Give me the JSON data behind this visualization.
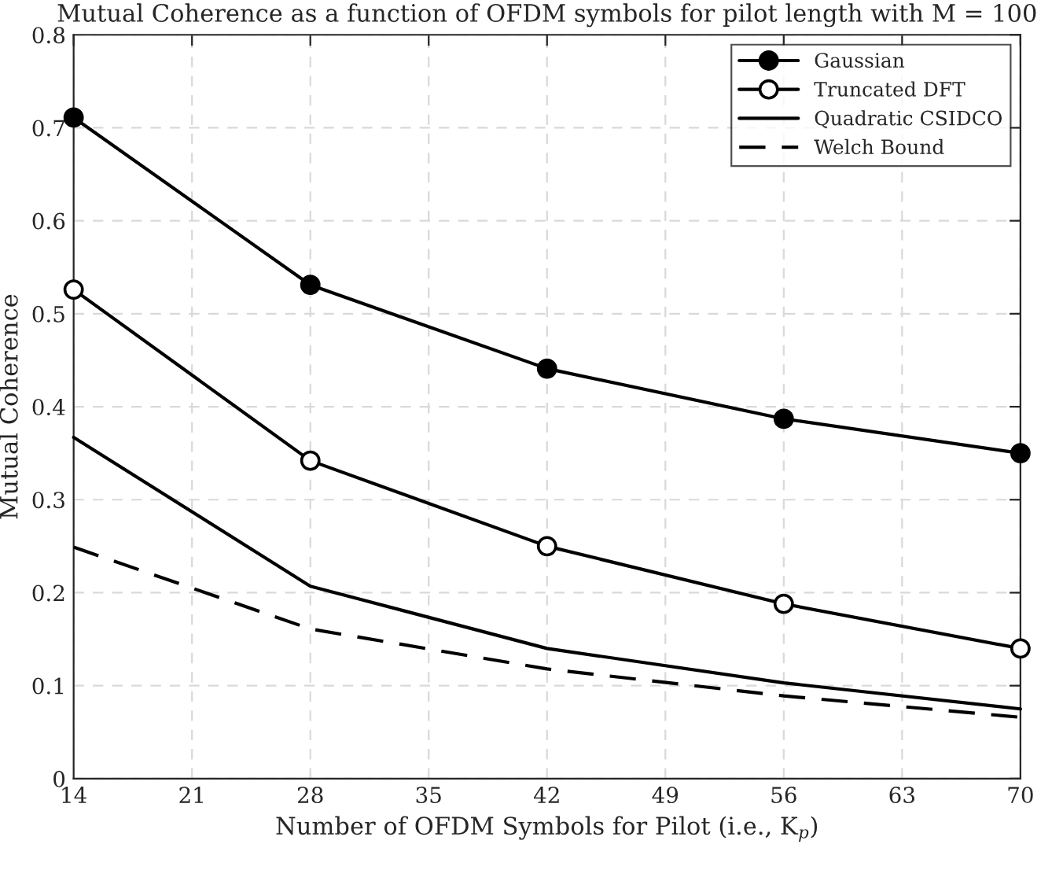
{
  "chart_data": {
    "type": "line",
    "title": "Mutual Coherence as a function of OFDM symbols for pilot length with M = 100",
    "xlabel": "Number of OFDM Symbols for Pilot (i.e., K$_{p}$)",
    "ylabel": "Mutual Coherence",
    "x": [
      14,
      28,
      42,
      56,
      70
    ],
    "series": [
      {
        "name": "Gaussian",
        "color": "#000000",
        "marker": "circle",
        "line_style": "solid",
        "values": [
          0.711,
          0.531,
          0.441,
          0.387,
          0.35
        ]
      },
      {
        "name": "Truncated DFT",
        "color": "#000000",
        "marker": "circle",
        "line_style": "solid",
        "values": [
          0.526,
          0.342,
          0.25,
          0.188,
          0.14
        ]
      },
      {
        "name": "Quadratic CSIDCO",
        "color": "#000000",
        "marker": "none",
        "line_style": "solid",
        "values": [
          0.367,
          0.207,
          0.14,
          0.103,
          0.075
        ]
      },
      {
        "name": "Welch Bound",
        "color": "#000000",
        "marker": "none",
        "line_style": "dashed",
        "values": [
          0.249,
          0.161,
          0.118,
          0.089,
          0.066
        ]
      }
    ],
    "xlim": [
      14,
      70
    ],
    "xticks": [
      14,
      21,
      28,
      35,
      42,
      49,
      56,
      63,
      70
    ],
    "ylim": [
      0,
      0.8
    ],
    "yticks": [
      0,
      0.1,
      0.2,
      0.3,
      0.4,
      0.5,
      0.6,
      0.7,
      0.8
    ],
    "grid": true,
    "legend": "top right"
  }
}
